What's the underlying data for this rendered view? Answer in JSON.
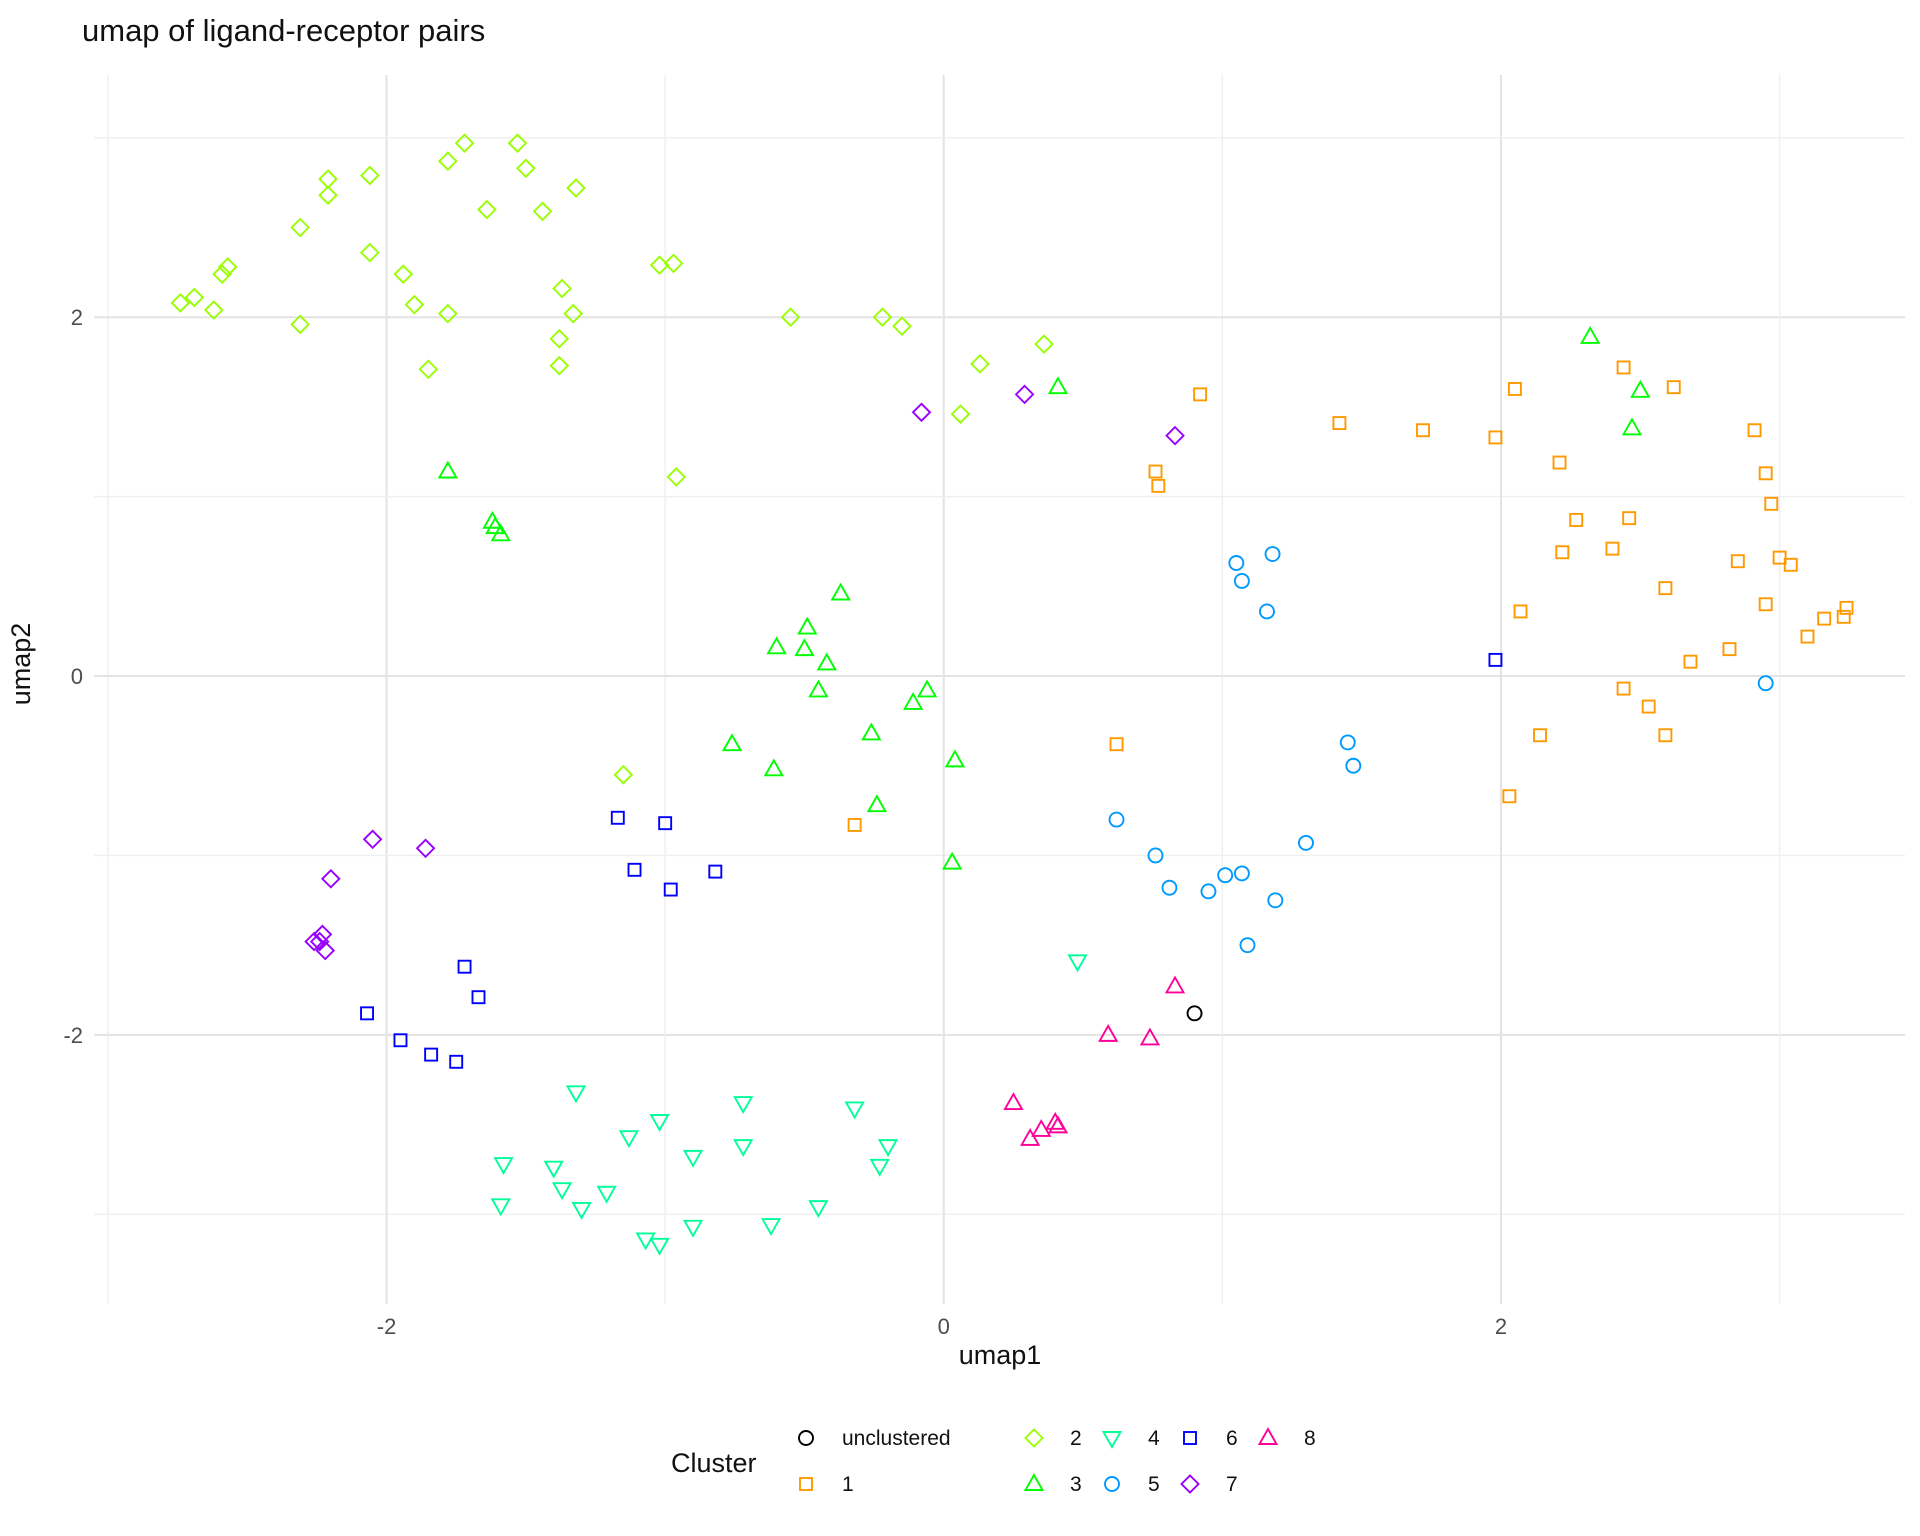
{
  "chart_data": {
    "type": "scatter",
    "title": "umap of ligand-receptor pairs",
    "xlabel": "umap1",
    "ylabel": "umap2",
    "xlim": [
      -3.05,
      3.45
    ],
    "ylim": [
      -3.5,
      3.35
    ],
    "xticks": [
      -2,
      0,
      2
    ],
    "yticks": [
      -2,
      0,
      2
    ],
    "xtick_labels": [
      "-2",
      "0",
      "2"
    ],
    "ytick_labels": [
      "-2",
      "0",
      "2"
    ],
    "grid": true,
    "legend_position": "bottom",
    "legend_title": "Cluster",
    "series": [
      {
        "name": "unclustered",
        "color": "#000000",
        "shape": "circle",
        "points": [
          [
            0.9,
            -1.88
          ]
        ]
      },
      {
        "name": "1",
        "color": "#FF9900",
        "shape": "square",
        "points": [
          [
            0.62,
            -0.38
          ],
          [
            -0.32,
            -0.83
          ],
          [
            0.76,
            1.14
          ],
          [
            0.77,
            1.06
          ],
          [
            0.92,
            1.57
          ],
          [
            1.42,
            1.41
          ],
          [
            1.72,
            1.37
          ],
          [
            1.98,
            1.33
          ],
          [
            2.05,
            1.6
          ],
          [
            2.21,
            1.19
          ],
          [
            2.07,
            0.36
          ],
          [
            2.22,
            0.69
          ],
          [
            2.27,
            0.87
          ],
          [
            2.03,
            -0.67
          ],
          [
            2.14,
            -0.33
          ],
          [
            2.44,
            1.72
          ],
          [
            2.62,
            1.61
          ],
          [
            2.4,
            0.71
          ],
          [
            2.46,
            0.88
          ],
          [
            2.59,
            0.49
          ],
          [
            2.44,
            -0.07
          ],
          [
            2.53,
            -0.17
          ],
          [
            2.59,
            -0.33
          ],
          [
            2.68,
            0.08
          ],
          [
            2.82,
            0.15
          ],
          [
            2.85,
            0.64
          ],
          [
            2.91,
            1.37
          ],
          [
            2.95,
            1.13
          ],
          [
            2.97,
            0.96
          ],
          [
            3.0,
            0.66
          ],
          [
            2.95,
            0.4
          ],
          [
            3.04,
            0.62
          ],
          [
            3.1,
            0.22
          ],
          [
            3.16,
            0.32
          ],
          [
            3.23,
            0.33
          ],
          [
            3.24,
            0.38
          ]
        ]
      },
      {
        "name": "2",
        "color": "#99FF00",
        "shape": "diamond",
        "points": [
          [
            -2.74,
            2.08
          ],
          [
            -2.69,
            2.11
          ],
          [
            -2.62,
            2.04
          ],
          [
            -2.59,
            2.24
          ],
          [
            -2.57,
            2.28
          ],
          [
            -2.31,
            2.5
          ],
          [
            -2.31,
            1.96
          ],
          [
            -2.21,
            2.77
          ],
          [
            -2.21,
            2.68
          ],
          [
            -2.06,
            2.79
          ],
          [
            -2.06,
            2.36
          ],
          [
            -1.94,
            2.24
          ],
          [
            -1.9,
            2.07
          ],
          [
            -1.85,
            1.71
          ],
          [
            -1.78,
            2.87
          ],
          [
            -1.78,
            2.02
          ],
          [
            -1.72,
            2.97
          ],
          [
            -1.64,
            2.6
          ],
          [
            -1.53,
            2.97
          ],
          [
            -1.5,
            2.83
          ],
          [
            -1.44,
            2.59
          ],
          [
            -1.37,
            2.16
          ],
          [
            -1.38,
            1.73
          ],
          [
            -1.38,
            1.88
          ],
          [
            -1.33,
            2.02
          ],
          [
            -1.32,
            2.72
          ],
          [
            -1.02,
            2.29
          ],
          [
            -0.97,
            2.3
          ],
          [
            -0.96,
            1.11
          ],
          [
            -1.15,
            -0.55
          ],
          [
            -0.55,
            2.0
          ],
          [
            -0.22,
            2.0
          ],
          [
            -0.15,
            1.95
          ],
          [
            0.06,
            1.46
          ],
          [
            0.13,
            1.74
          ],
          [
            0.36,
            1.85
          ]
        ]
      },
      {
        "name": "3",
        "color": "#00FF00",
        "shape": "triangle-up",
        "points": [
          [
            -1.78,
            1.14
          ],
          [
            -1.62,
            0.86
          ],
          [
            -1.61,
            0.83
          ],
          [
            -1.59,
            0.79
          ],
          [
            0.41,
            1.61
          ],
          [
            -0.37,
            0.46
          ],
          [
            -0.49,
            0.27
          ],
          [
            -0.6,
            0.16
          ],
          [
            -0.5,
            0.15
          ],
          [
            -0.42,
            0.07
          ],
          [
            -0.45,
            -0.08
          ],
          [
            -0.06,
            -0.08
          ],
          [
            -0.11,
            -0.15
          ],
          [
            -0.26,
            -0.32
          ],
          [
            -0.76,
            -0.38
          ],
          [
            -0.61,
            -0.52
          ],
          [
            0.04,
            -0.47
          ],
          [
            -0.24,
            -0.72
          ],
          [
            0.03,
            -1.04
          ],
          [
            2.32,
            1.89
          ],
          [
            2.5,
            1.59
          ],
          [
            2.47,
            1.38
          ]
        ]
      },
      {
        "name": "4",
        "color": "#00FF99",
        "shape": "triangle-down",
        "points": [
          [
            0.48,
            -1.59
          ],
          [
            -1.32,
            -2.32
          ],
          [
            -0.72,
            -2.38
          ],
          [
            -0.32,
            -2.41
          ],
          [
            -1.13,
            -2.57
          ],
          [
            -1.02,
            -2.48
          ],
          [
            -0.9,
            -2.68
          ],
          [
            -0.72,
            -2.62
          ],
          [
            -0.2,
            -2.62
          ],
          [
            -0.23,
            -2.73
          ],
          [
            -1.58,
            -2.72
          ],
          [
            -1.4,
            -2.74
          ],
          [
            -1.37,
            -2.86
          ],
          [
            -1.21,
            -2.88
          ],
          [
            -1.3,
            -2.97
          ],
          [
            -1.59,
            -2.95
          ],
          [
            -0.45,
            -2.96
          ],
          [
            -0.62,
            -3.06
          ],
          [
            -0.9,
            -3.07
          ],
          [
            -1.07,
            -3.14
          ],
          [
            -1.02,
            -3.17
          ]
        ]
      },
      {
        "name": "5",
        "color": "#0099FF",
        "shape": "circle",
        "points": [
          [
            1.05,
            0.63
          ],
          [
            1.18,
            0.68
          ],
          [
            1.07,
            0.53
          ],
          [
            1.16,
            0.36
          ],
          [
            1.45,
            -0.37
          ],
          [
            1.47,
            -0.5
          ],
          [
            0.62,
            -0.8
          ],
          [
            0.76,
            -1.0
          ],
          [
            0.81,
            -1.18
          ],
          [
            0.95,
            -1.2
          ],
          [
            1.01,
            -1.11
          ],
          [
            1.07,
            -1.1
          ],
          [
            1.19,
            -1.25
          ],
          [
            1.3,
            -0.93
          ],
          [
            1.09,
            -1.5
          ],
          [
            2.95,
            -0.04
          ]
        ]
      },
      {
        "name": "6",
        "color": "#0000FF",
        "shape": "square",
        "points": [
          [
            1.98,
            0.09
          ],
          [
            -1.17,
            -0.79
          ],
          [
            -1.0,
            -0.82
          ],
          [
            -1.11,
            -1.08
          ],
          [
            -0.82,
            -1.09
          ],
          [
            -0.98,
            -1.19
          ],
          [
            -1.72,
            -1.62
          ],
          [
            -1.67,
            -1.79
          ],
          [
            -2.07,
            -1.88
          ],
          [
            -1.95,
            -2.03
          ],
          [
            -1.84,
            -2.11
          ],
          [
            -1.75,
            -2.15
          ]
        ]
      },
      {
        "name": "7",
        "color": "#9900FF",
        "shape": "diamond",
        "points": [
          [
            -0.08,
            1.47
          ],
          [
            0.29,
            1.57
          ],
          [
            0.83,
            1.34
          ],
          [
            -2.05,
            -0.91
          ],
          [
            -1.86,
            -0.96
          ],
          [
            -2.2,
            -1.13
          ],
          [
            -2.23,
            -1.44
          ],
          [
            -2.24,
            -1.48
          ],
          [
            -2.26,
            -1.48
          ],
          [
            -2.22,
            -1.53
          ]
        ]
      },
      {
        "name": "8",
        "color": "#FF0099",
        "shape": "triangle-up",
        "points": [
          [
            0.83,
            -1.73
          ],
          [
            0.59,
            -2.0
          ],
          [
            0.74,
            -2.02
          ],
          [
            0.25,
            -2.38
          ],
          [
            0.35,
            -2.53
          ],
          [
            0.31,
            -2.58
          ],
          [
            0.4,
            -2.49
          ],
          [
            0.41,
            -2.51
          ]
        ]
      }
    ]
  }
}
